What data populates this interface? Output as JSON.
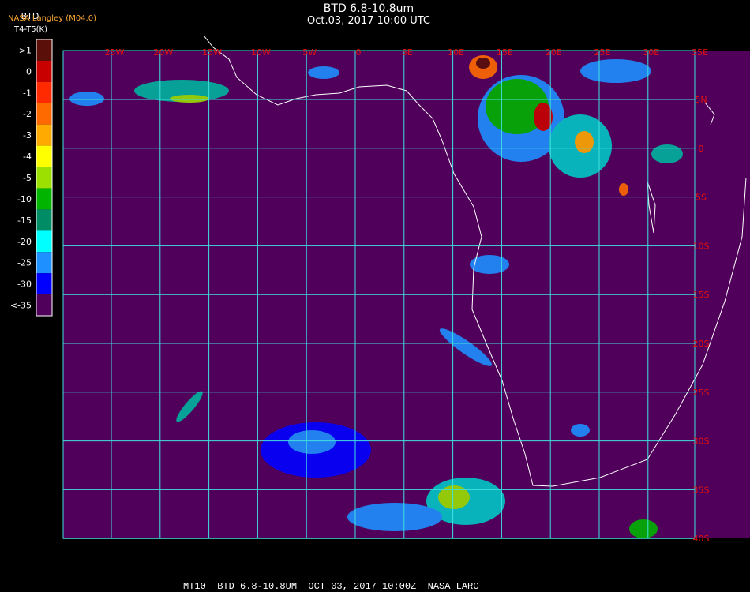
{
  "header": {
    "title": "BTD 6.8-10.8um",
    "subtitle": "Oct.03, 2017 10:00 UTC",
    "product": "BTD",
    "source": "NASA Langley (M04.0)",
    "units": "T4-T5(K)"
  },
  "legend": [
    {
      "label": ">1",
      "color": "#5a1008"
    },
    {
      "label": "0",
      "color": "#c80000"
    },
    {
      "label": "-1",
      "color": "#ff2a00"
    },
    {
      "label": "-2",
      "color": "#ff6a00"
    },
    {
      "label": "-3",
      "color": "#ffaa00"
    },
    {
      "label": "-4",
      "color": "#ffff00"
    },
    {
      "label": "-5",
      "color": "#9be000"
    },
    {
      "label": "-10",
      "color": "#00b400"
    },
    {
      "label": "-15",
      "color": "#008c64"
    },
    {
      "label": "-20",
      "color": "#00ffff"
    },
    {
      "label": "-25",
      "color": "#1e90ff"
    },
    {
      "label": "-30",
      "color": "#0000ff"
    },
    {
      "label": "<-35",
      "color": "#50005a"
    }
  ],
  "longitudes": [
    "25W",
    "20W",
    "15W",
    "10W",
    "5W",
    "0",
    "5E",
    "10E",
    "15E",
    "20E",
    "25E",
    "30E",
    "35E"
  ],
  "latitudes": [
    "5N",
    "0",
    "5S",
    "10S",
    "15S",
    "20S",
    "25S",
    "30S",
    "35S",
    "40S"
  ],
  "footer": "MT10  BTD 6.8-10.8UM  OCT 03, 2017 10:00Z  NASA LARC"
}
